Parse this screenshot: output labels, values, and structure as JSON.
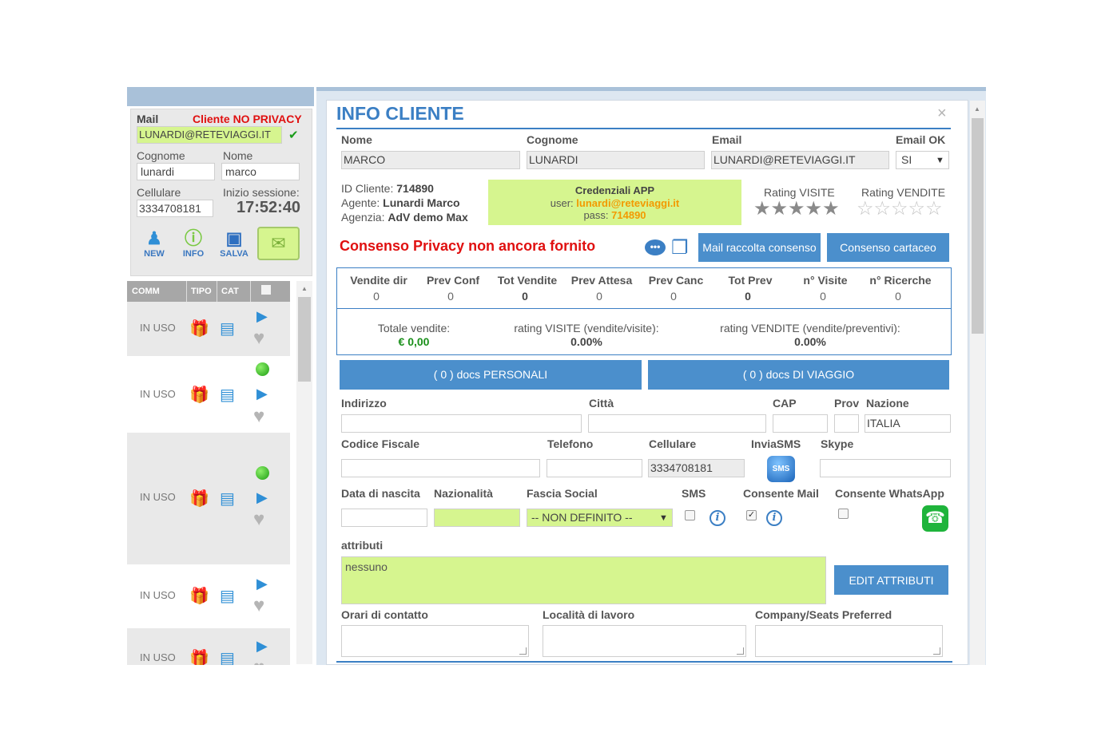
{
  "left": {
    "mail_label": "Mail",
    "privacy_status": "Cliente NO PRIVACY",
    "mail_value": "LUNARDI@RETEVIAGGI.IT",
    "check_glyph": "✔",
    "cognome_label": "Cognome",
    "nome_label": "Nome",
    "cognome_value": "lunardi",
    "nome_value": "marco",
    "cellulare_label": "Cellulare",
    "inizio_label": "Inizio sessione:",
    "cellulare_value": "3334708181",
    "session_time": "17:52:40",
    "toolbar": {
      "new_label": "NEW",
      "info_label": "INFO",
      "salva_label": "SALVA"
    },
    "list_header": {
      "comm": "COMM",
      "tipo": "TIPO",
      "cat": "CAT"
    },
    "rows": [
      {
        "label": "IN USO"
      },
      {
        "label": "IN USO"
      },
      {
        "label": "IN USO"
      },
      {
        "label": "IN USO"
      },
      {
        "label": "IN USO"
      }
    ]
  },
  "modal": {
    "title": "INFO CLIENTE",
    "close_glyph": "×",
    "nome_label": "Nome",
    "cognome_label": "Cognome",
    "email_label": "Email",
    "email_ok_label": "Email OK",
    "nome_value": "MARCO",
    "cognome_value": "LUNARDI",
    "email_value": "LUNARDI@RETEVIAGGI.IT",
    "email_ok_value": "SI",
    "id_cliente_label": "ID Cliente:",
    "id_cliente_value": "714890",
    "agente_label": "Agente:",
    "agente_value": "Lunardi Marco",
    "agenzia_label": "Agenzia:",
    "agenzia_value": "AdV demo Max",
    "credentials": {
      "title": "Credenziali APP",
      "user_label": "user:",
      "user_value": "lunardi@reteviaggi.it",
      "pass_label": "pass:",
      "pass_value": "714890"
    },
    "rating_visite_label": "Rating VISITE",
    "rating_vendite_label": "Rating VENDITE",
    "rating_visite_stars": "★★★★★",
    "rating_vendite_stars": "☆☆☆☆☆",
    "privacy_warning": "Consenso Privacy non ancora fornito",
    "mail_consenso_button": "Mail raccolta consenso",
    "consenso_cartaceo_button": "Consenso cartaceo",
    "stats": {
      "headers": [
        "Vendite dir",
        "Prev Conf",
        "Tot Vendite",
        "Prev Attesa",
        "Prev Canc",
        "Tot Prev",
        "n° Visite",
        "n° Ricerche"
      ],
      "values": [
        "0",
        "0",
        "0",
        "0",
        "0",
        "0",
        "0",
        "0"
      ],
      "totale_vendite_label": "Totale vendite:",
      "totale_vendite_value": "€ 0,00",
      "rating_visite_label": "rating VISITE (vendite/visite):",
      "rating_visite_value": "0.00%",
      "rating_vendite_label": "rating VENDITE (vendite/preventivi):",
      "rating_vendite_value": "0.00%"
    },
    "docs_personali_button": "( 0 ) docs PERSONALI",
    "docs_viaggio_button": "( 0 ) docs DI VIAGGIO",
    "indirizzo_label": "Indirizzo",
    "citta_label": "Città",
    "cap_label": "CAP",
    "prov_label": "Prov",
    "nazione_label": "Nazione",
    "nazione_value": "ITALIA",
    "codice_fiscale_label": "Codice Fiscale",
    "telefono_label": "Telefono",
    "cellulare_label": "Cellulare",
    "invia_sms_label": "InviaSMS",
    "skype_label": "Skype",
    "cellulare_value": "3334708181",
    "sms_icon_text": "SMS",
    "data_nascita_label": "Data di nascita",
    "nazionalita_label": "Nazionalità",
    "fascia_social_label": "Fascia Social",
    "sms_label": "SMS",
    "consente_mail_label": "Consente Mail",
    "consente_whatsapp_label": "Consente WhatsApp",
    "fascia_social_value": "-- NON DEFINITO --",
    "attributi_label": "attributi",
    "attributi_value": "nessuno",
    "edit_attributi_button": "EDIT ATTRIBUTI",
    "orari_label": "Orari di contatto",
    "localita_label": "Località di lavoro",
    "company_label": "Company/Seats Preferred"
  },
  "colors": {
    "accent": "#3b7fc4",
    "button": "#4b8fcc",
    "highlight_green": "#d6f58f",
    "warning_red": "#e01010",
    "credential_orange": "#f39a00"
  }
}
